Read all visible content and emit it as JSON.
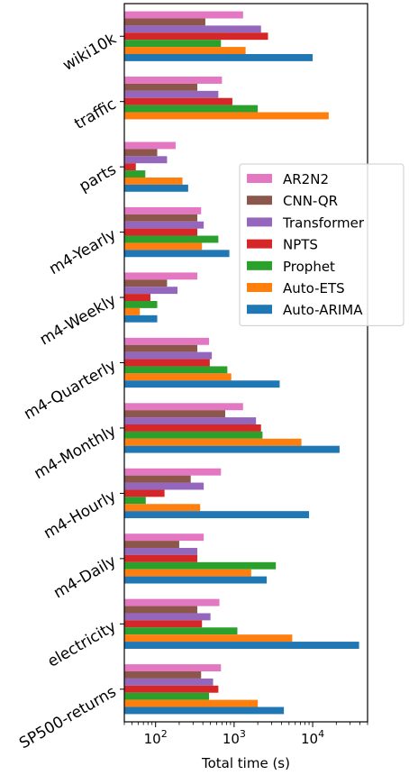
{
  "chart_data": {
    "type": "bar",
    "orientation": "horizontal",
    "xlabel": "Total time (s)",
    "xscale": "log",
    "xlim": [
      40,
      50000
    ],
    "xticks": [
      {
        "value": 100,
        "base": "10",
        "exp": "2"
      },
      {
        "value": 1000,
        "base": "10",
        "exp": "3"
      },
      {
        "value": 10000,
        "base": "10",
        "exp": "4"
      }
    ],
    "legend_position": "center-right",
    "categories": [
      "wiki10k",
      "traffic",
      "parts",
      "m4-Yearly",
      "m4-Weekly",
      "m4-Quarterly",
      "m4-Monthly",
      "m4-Hourly",
      "m4-Daily",
      "electricity",
      "SP500-returns"
    ],
    "series": [
      {
        "name": "AR2N2",
        "color": "#e377c2",
        "values": [
          1300,
          700,
          180,
          380,
          340,
          480,
          1300,
          680,
          410,
          650,
          680
        ]
      },
      {
        "name": "CNN-QR",
        "color": "#8c564b",
        "values": [
          430,
          340,
          105,
          340,
          140,
          340,
          770,
          280,
          200,
          340,
          380
        ]
      },
      {
        "name": "Transformer",
        "color": "#9467bd",
        "values": [
          2200,
          630,
          140,
          410,
          190,
          520,
          1900,
          410,
          340,
          500,
          540
        ]
      },
      {
        "name": "NPTS",
        "color": "#d62728",
        "values": [
          2700,
          950,
          56,
          340,
          86,
          490,
          2200,
          130,
          340,
          390,
          630
        ]
      },
      {
        "name": "Prophet",
        "color": "#2ca02c",
        "values": [
          680,
          2000,
          74,
          630,
          105,
          820,
          2300,
          75,
          3400,
          1100,
          480
        ]
      },
      {
        "name": "Auto-ETS",
        "color": "#ff7f0e",
        "values": [
          1400,
          16000,
          220,
          390,
          63,
          920,
          7200,
          370,
          1650,
          5500,
          2000
        ]
      },
      {
        "name": "Auto-ARIMA",
        "color": "#1f77b4",
        "values": [
          10000,
          null,
          260,
          870,
          105,
          3800,
          22000,
          9000,
          2600,
          39000,
          4300
        ]
      }
    ]
  }
}
